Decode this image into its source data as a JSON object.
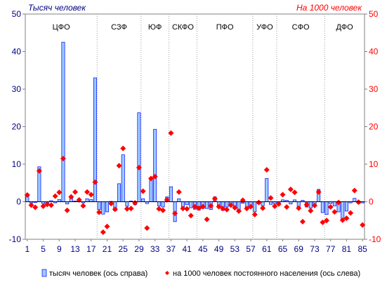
{
  "chart_data": {
    "type": "bar",
    "left_unit_label": "Тысяч человек",
    "right_unit_label": "На 1000 человек",
    "y_left": {
      "range": [
        -10,
        50
      ],
      "ticks": [
        -10,
        0,
        10,
        20,
        30,
        40,
        50
      ]
    },
    "y_right": {
      "range": [
        -10,
        50
      ],
      "ticks": [
        -10,
        0,
        10,
        20,
        30,
        40,
        50
      ]
    },
    "x_ticks": [
      1,
      5,
      9,
      13,
      17,
      21,
      25,
      29,
      33,
      37,
      41,
      45,
      49,
      53,
      57,
      61,
      65,
      69,
      73,
      77,
      81,
      85
    ],
    "x_range": [
      1,
      85
    ],
    "grid": false,
    "legend_position": "bottom",
    "districts": [
      {
        "label": "ЦФО",
        "start": 1,
        "end": 18
      },
      {
        "label": "СЗФ",
        "start": 19,
        "end": 29
      },
      {
        "label": "ЮФ",
        "start": 30,
        "end": 36
      },
      {
        "label": "СКФО",
        "start": 37,
        "end": 43
      },
      {
        "label": "ПФО",
        "start": 44,
        "end": 57
      },
      {
        "label": "УФО",
        "start": 58,
        "end": 63
      },
      {
        "label": "СФО",
        "start": 64,
        "end": 75
      },
      {
        "label": "ДФО",
        "start": 76,
        "end": 85
      }
    ],
    "series": [
      {
        "name": "тысяч человек (ось справа)",
        "kind": "bar",
        "axis": "right",
        "color": "#99ccff",
        "edge": "#0000ff",
        "x": [
          1,
          2,
          3,
          4,
          5,
          6,
          7,
          8,
          9,
          10,
          11,
          12,
          13,
          14,
          15,
          16,
          17,
          18,
          19,
          20,
          21,
          22,
          23,
          24,
          25,
          26,
          27,
          28,
          29,
          30,
          31,
          32,
          33,
          34,
          35,
          36,
          37,
          38,
          39,
          40,
          41,
          42,
          43,
          44,
          45,
          46,
          47,
          48,
          49,
          50,
          51,
          52,
          53,
          54,
          55,
          56,
          57,
          58,
          59,
          60,
          61,
          62,
          63,
          64,
          65,
          66,
          67,
          68,
          69,
          70,
          71,
          72,
          73,
          74,
          75,
          76,
          77,
          78,
          79,
          80,
          81,
          82,
          83,
          84,
          85
        ],
        "values": [
          2,
          -0.3,
          -0.2,
          9.3,
          -0.5,
          -0.4,
          0.3,
          -0.3,
          0.6,
          42.5,
          -0.6,
          1.1,
          0.2,
          0.5,
          -0.3,
          0.8,
          0.6,
          33,
          -2.1,
          -3.3,
          -2.7,
          0.1,
          -2.4,
          4.8,
          12.5,
          -1.2,
          0.2,
          -0.8,
          23.7,
          0.8,
          -0.5,
          6,
          19.3,
          -1.1,
          -1.4,
          1.3,
          4,
          -5.3,
          0.8,
          -1.4,
          -0.8,
          -1.6,
          -2,
          -2.2,
          -1.8,
          -1.8,
          -2.1,
          1.3,
          -1.2,
          -2.3,
          -1.4,
          -0.9,
          -1.5,
          -2.4,
          -0.4,
          -1.8,
          -0.9,
          -2.7,
          -0.6,
          -1.1,
          6.2,
          -0.7,
          -0.5,
          -0.3,
          0.5,
          0.4,
          -0.6,
          0.5,
          -1.3,
          0.4,
          -1.4,
          -1.7,
          -0.8,
          3.3,
          -2.9,
          -3.4,
          -0.5,
          -1.1,
          -2.7,
          -4.6,
          -2.5,
          -0.3,
          0.9,
          -0.5,
          -0.3
        ]
      },
      {
        "name": "на 1000 человек постоянного населения (ось слева)",
        "kind": "scatter",
        "axis": "left",
        "color": "#ff0000",
        "x": [
          1,
          2,
          3,
          4,
          5,
          6,
          7,
          8,
          9,
          10,
          11,
          12,
          13,
          14,
          15,
          16,
          17,
          18,
          19,
          20,
          21,
          22,
          23,
          24,
          25,
          26,
          27,
          28,
          29,
          30,
          31,
          32,
          33,
          34,
          35,
          36,
          37,
          38,
          39,
          40,
          41,
          42,
          43,
          44,
          45,
          46,
          47,
          48,
          49,
          50,
          51,
          52,
          53,
          54,
          55,
          56,
          57,
          58,
          59,
          60,
          61,
          62,
          63,
          64,
          65,
          66,
          67,
          68,
          69,
          70,
          71,
          72,
          73,
          74,
          75,
          76,
          77,
          78,
          79,
          80,
          81,
          82,
          83,
          84,
          85
        ],
        "values": [
          1.8,
          -0.9,
          -1.5,
          8.2,
          -1.2,
          -0.7,
          -0.9,
          1.5,
          2.5,
          11.5,
          -2.3,
          1.3,
          2.6,
          0.5,
          -1.1,
          2.6,
          1.9,
          5.2,
          -2.8,
          -8.1,
          -6.6,
          -0.5,
          -2,
          9.6,
          14.2,
          -1.9,
          -1.8,
          -0.3,
          9.1,
          2.8,
          -7,
          6.2,
          6.7,
          -1.9,
          -2.3,
          0.5,
          18.3,
          -3.1,
          2.6,
          -1.8,
          -1.9,
          -3.7,
          -1.3,
          -1.7,
          -1.3,
          -4.7,
          -1.1,
          0.8,
          -1.3,
          -1.8,
          -2.1,
          -0.9,
          -1.6,
          -2.5,
          0.4,
          -1.8,
          -1.3,
          -3.4,
          -0.2,
          -1.7,
          8.5,
          1,
          -1.2,
          -0.6,
          1.9,
          -1.4,
          3.3,
          2.5,
          -1.7,
          -5.3,
          -0.8,
          -2.4,
          -1,
          2.6,
          -5.5,
          -5,
          -1.4,
          -2.7,
          -0.2,
          -4.9,
          -4.4,
          -3,
          3,
          -0.1,
          -6.2
        ]
      }
    ]
  }
}
